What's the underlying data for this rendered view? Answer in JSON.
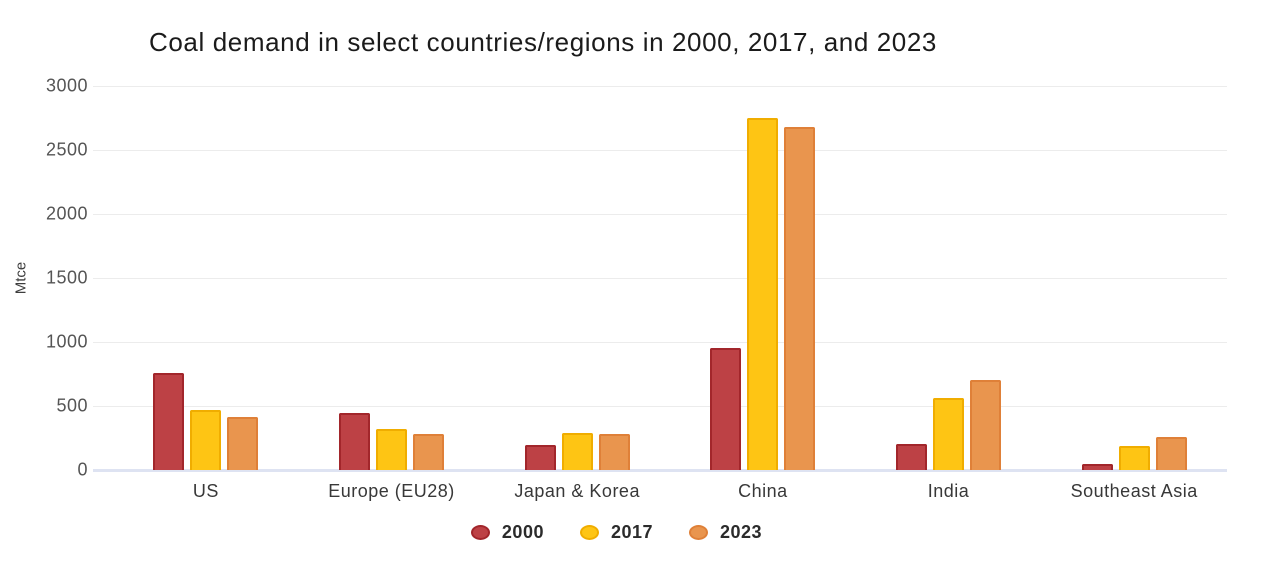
{
  "chart_data": {
    "type": "bar",
    "title": "Coal demand in select countries/regions in 2000, 2017, and 2023",
    "xlabel": "",
    "ylabel": "Mtce",
    "ylim": [
      0,
      3000
    ],
    "yticks": [
      0,
      500,
      1000,
      1500,
      2000,
      2500,
      3000
    ],
    "grid": "horizontal",
    "grid_color": "#ececec",
    "axis_line_color": "#dee3f2",
    "legend_position": "bottom",
    "categories": [
      "US",
      "Europe (EU28)",
      "Japan & Korea",
      "China",
      "India",
      "Southeast Asia"
    ],
    "series": [
      {
        "name": "2000",
        "color": "#bd4145",
        "border_color": "#a2262b",
        "values": [
          760,
          445,
          195,
          950,
          205,
          45
        ]
      },
      {
        "name": "2017",
        "color": "#fec514",
        "border_color": "#f0ad00",
        "values": [
          465,
          320,
          290,
          2750,
          560,
          190
        ]
      },
      {
        "name": "2023",
        "color": "#e9954e",
        "border_color": "#df8038",
        "values": [
          415,
          285,
          280,
          2680,
          700,
          260
        ]
      }
    ]
  }
}
